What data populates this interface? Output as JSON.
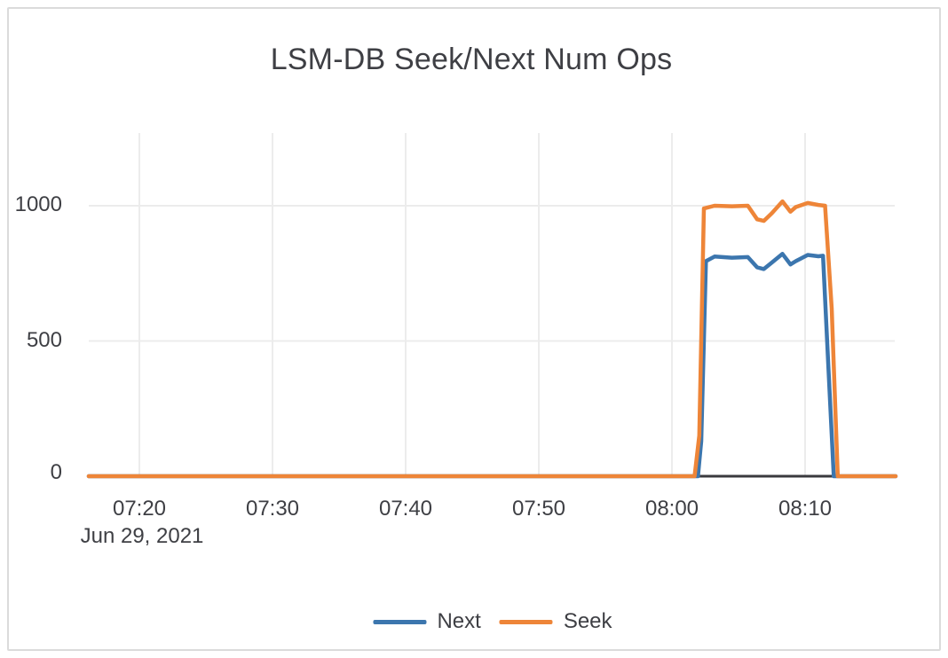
{
  "window": {
    "background": "#ffffff",
    "frame_border_color": "#dbdbdb"
  },
  "chart_data": {
    "type": "line",
    "title": "LSM-DB Seek/Next Num Ops",
    "x_axis": {
      "label": "",
      "date_label": "Jun 29, 2021",
      "tick_labels": [
        "07:20",
        "07:30",
        "07:40",
        "07:50",
        "08:00",
        "08:10"
      ],
      "tick_minutes": [
        20,
        30,
        40,
        50,
        60,
        70
      ],
      "range_minutes": [
        16.2,
        76.8
      ],
      "grid": true
    },
    "y_axis": {
      "label": "",
      "tick_labels": [
        "0",
        "500",
        "1000"
      ],
      "tick_values": [
        0,
        500,
        1000
      ],
      "range": [
        0,
        1270
      ],
      "grid": true
    },
    "legend": {
      "position": "bottom-center",
      "items": [
        "Next",
        "Seek"
      ]
    },
    "series": [
      {
        "name": "Next",
        "color": "#3C76AE",
        "points": [
          [
            16.2,
            0
          ],
          [
            61.95,
            0
          ],
          [
            62.2,
            130
          ],
          [
            62.55,
            795
          ],
          [
            63.2,
            812
          ],
          [
            64.5,
            808
          ],
          [
            65.7,
            810
          ],
          [
            66.4,
            772
          ],
          [
            66.9,
            766
          ],
          [
            67.5,
            790
          ],
          [
            68.3,
            822
          ],
          [
            68.9,
            783
          ],
          [
            69.3,
            795
          ],
          [
            70.2,
            818
          ],
          [
            71.0,
            813
          ],
          [
            71.35,
            815
          ],
          [
            71.75,
            400
          ],
          [
            72.15,
            0
          ],
          [
            76.8,
            0
          ]
        ]
      },
      {
        "name": "Seek",
        "color": "#EE8538",
        "points": [
          [
            16.2,
            0
          ],
          [
            61.7,
            0
          ],
          [
            62.05,
            150
          ],
          [
            62.4,
            990
          ],
          [
            63.2,
            1000
          ],
          [
            64.5,
            998
          ],
          [
            65.7,
            1000
          ],
          [
            66.4,
            950
          ],
          [
            66.9,
            944
          ],
          [
            67.5,
            972
          ],
          [
            68.3,
            1016
          ],
          [
            68.9,
            978
          ],
          [
            69.3,
            995
          ],
          [
            70.2,
            1010
          ],
          [
            71.0,
            1003
          ],
          [
            71.5,
            1000
          ],
          [
            72.0,
            620
          ],
          [
            72.45,
            0
          ],
          [
            76.8,
            0
          ]
        ]
      }
    ],
    "colors": {
      "grid": "#ececec",
      "zero_line": "#3a3a3e",
      "text": "#3e3f44",
      "next_series": "#3C76AE",
      "seek_series": "#EE8538"
    }
  }
}
